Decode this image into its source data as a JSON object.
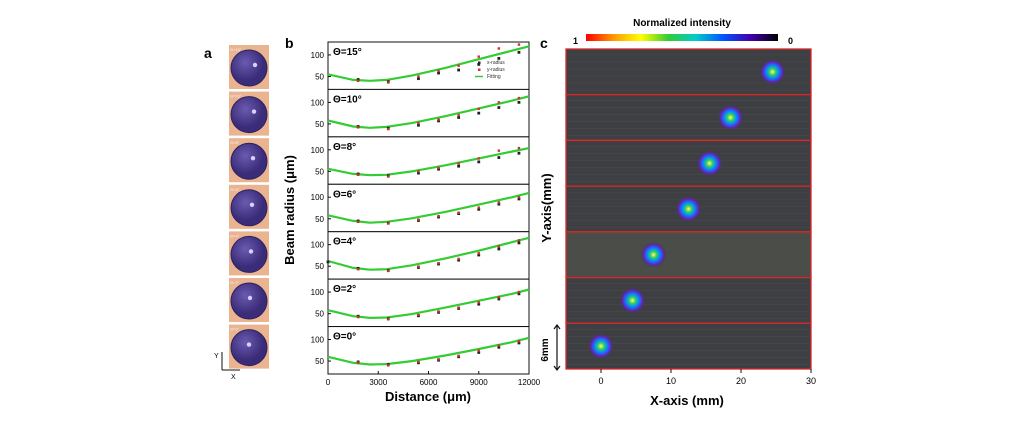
{
  "panel_labels": {
    "a": "a",
    "b": "b",
    "c": "c"
  },
  "panel_a": {
    "thumbnails": [
      {
        "label": "Θ=15°"
      },
      {
        "label": "Θ=10°"
      },
      {
        "label": "Θ=8°"
      },
      {
        "label": "Θ=6°"
      },
      {
        "label": "Θ=4°"
      },
      {
        "label": "Θ=2°"
      },
      {
        "label": "Θ=0°"
      }
    ],
    "axis_x": "X",
    "axis_y": "Y",
    "colors": {
      "tile_bg": "#e9b48f",
      "disk": "#4d3c8c",
      "disk_edge": "#2e2060"
    }
  },
  "chart_data": [
    {
      "type": "scatter",
      "panel": "b",
      "xlabel": "Distance (μm)",
      "ylabel": "Beam radius (μm)",
      "xlim": [
        0,
        12000
      ],
      "ylim": [
        20,
        130
      ],
      "xticks": [
        0,
        3000,
        6000,
        9000,
        12000
      ],
      "yticks": [
        50,
        100
      ],
      "legend": [
        "x-radius",
        "y-radius",
        "Fitting"
      ],
      "legend_position": "top-right of first subplot",
      "series_colors": {
        "x-radius": "#222222",
        "y-radius": "#d03030",
        "Fitting": "#33cc33"
      },
      "subplots": [
        {
          "label": "Θ=15°",
          "x_radius": [
            [
              1800,
              43
            ],
            [
              3600,
              38
            ],
            [
              5400,
              45
            ],
            [
              6600,
              58
            ],
            [
              7800,
              65
            ],
            [
              9000,
              78
            ],
            [
              10200,
              92
            ],
            [
              11400,
              106
            ]
          ],
          "y_radius": [
            [
              1800,
              40
            ],
            [
              3600,
              36
            ],
            [
              5400,
              50
            ],
            [
              6600,
              63
            ],
            [
              7800,
              75
            ],
            [
              9000,
              96
            ],
            [
              10200,
              115
            ],
            [
              11400,
              124
            ]
          ],
          "fit": [
            [
              0,
              55
            ],
            [
              1500,
              42
            ],
            [
              2500,
              40
            ],
            [
              3500,
              42
            ],
            [
              5000,
              52
            ],
            [
              7000,
              70
            ],
            [
              9000,
              90
            ],
            [
              11000,
              110
            ],
            [
              12000,
              120
            ]
          ]
        },
        {
          "label": "Θ=10°",
          "x_radius": [
            [
              1800,
              44
            ],
            [
              3600,
              40
            ],
            [
              5400,
              47
            ],
            [
              6600,
              57
            ],
            [
              7800,
              65
            ],
            [
              9000,
              75
            ],
            [
              10200,
              88
            ],
            [
              11400,
              100
            ]
          ],
          "y_radius": [
            [
              1800,
              42
            ],
            [
              3600,
              38
            ],
            [
              5400,
              52
            ],
            [
              6600,
              60
            ],
            [
              7800,
              70
            ],
            [
              9000,
              85
            ],
            [
              10200,
              100
            ],
            [
              11400,
              110
            ]
          ],
          "fit": [
            [
              0,
              58
            ],
            [
              1500,
              44
            ],
            [
              2500,
              41
            ],
            [
              3500,
              43
            ],
            [
              5000,
              52
            ],
            [
              7000,
              68
            ],
            [
              9000,
              86
            ],
            [
              11000,
              104
            ],
            [
              12000,
              114
            ]
          ]
        },
        {
          "label": "Θ=8°",
          "x_radius": [
            [
              1800,
              44
            ],
            [
              3600,
              40
            ],
            [
              5400,
              46
            ],
            [
              6600,
              55
            ],
            [
              7800,
              62
            ],
            [
              9000,
              72
            ],
            [
              10200,
              82
            ],
            [
              11400,
              92
            ]
          ],
          "y_radius": [
            [
              1800,
              42
            ],
            [
              3600,
              38
            ],
            [
              5400,
              50
            ],
            [
              6600,
              58
            ],
            [
              7800,
              68
            ],
            [
              9000,
              80
            ],
            [
              10200,
              98
            ],
            [
              11400,
              104
            ]
          ],
          "fit": [
            [
              0,
              56
            ],
            [
              1500,
              44
            ],
            [
              2500,
              41
            ],
            [
              3500,
              42
            ],
            [
              5000,
              50
            ],
            [
              7000,
              64
            ],
            [
              9000,
              80
            ],
            [
              11000,
              96
            ],
            [
              12000,
              104
            ]
          ]
        },
        {
          "label": "Θ=6°",
          "x_radius": [
            [
              1800,
              45
            ],
            [
              3600,
              40
            ],
            [
              5400,
              46
            ],
            [
              6600,
              54
            ],
            [
              7800,
              62
            ],
            [
              9000,
              72
            ],
            [
              10200,
              84
            ],
            [
              11400,
              96
            ]
          ],
          "y_radius": [
            [
              1800,
              43
            ],
            [
              3600,
              39
            ],
            [
              5400,
              48
            ],
            [
              6600,
              56
            ],
            [
              7800,
              64
            ],
            [
              9000,
              76
            ],
            [
              10200,
              88
            ],
            [
              11400,
              100
            ]
          ],
          "fit": [
            [
              0,
              58
            ],
            [
              1500,
              45
            ],
            [
              2500,
              41
            ],
            [
              3500,
              43
            ],
            [
              5000,
              51
            ],
            [
              7000,
              66
            ],
            [
              9000,
              83
            ],
            [
              11000,
              100
            ],
            [
              12000,
              110
            ]
          ]
        },
        {
          "label": "Θ=4°",
          "x_radius": [
            [
              0,
              60
            ],
            [
              1800,
              45
            ],
            [
              3600,
              40
            ],
            [
              5400,
              47
            ],
            [
              6600,
              55
            ],
            [
              7800,
              64
            ],
            [
              9000,
              76
            ],
            [
              10200,
              90
            ],
            [
              11400,
              104
            ]
          ],
          "y_radius": [
            [
              1800,
              43
            ],
            [
              3600,
              39
            ],
            [
              5400,
              49
            ],
            [
              6600,
              57
            ],
            [
              7800,
              67
            ],
            [
              9000,
              80
            ],
            [
              10200,
              96
            ],
            [
              11400,
              110
            ]
          ],
          "fit": [
            [
              0,
              62
            ],
            [
              1500,
              46
            ],
            [
              2500,
              42
            ],
            [
              3500,
              43
            ],
            [
              5000,
              52
            ],
            [
              7000,
              68
            ],
            [
              9000,
              86
            ],
            [
              11000,
              106
            ],
            [
              12000,
              116
            ]
          ]
        },
        {
          "label": "Θ=2°",
          "x_radius": [
            [
              1800,
              44
            ],
            [
              3600,
              38
            ],
            [
              5400,
              45
            ],
            [
              6600,
              53
            ],
            [
              7800,
              62
            ],
            [
              9000,
              72
            ],
            [
              10200,
              84
            ],
            [
              11400,
              96
            ]
          ],
          "y_radius": [
            [
              1800,
              42
            ],
            [
              3600,
              37
            ],
            [
              5400,
              47
            ],
            [
              6600,
              55
            ],
            [
              7800,
              64
            ],
            [
              9000,
              76
            ],
            [
              10200,
              88
            ],
            [
              11400,
              100
            ]
          ],
          "fit": [
            [
              0,
              58
            ],
            [
              1500,
              44
            ],
            [
              2500,
              40
            ],
            [
              3500,
              41
            ],
            [
              5000,
              49
            ],
            [
              7000,
              64
            ],
            [
              9000,
              80
            ],
            [
              11000,
              96
            ],
            [
              12000,
              106
            ]
          ]
        },
        {
          "label": "Θ=0°",
          "x_radius": [
            [
              1800,
              48
            ],
            [
              3600,
              42
            ],
            [
              5400,
              46
            ],
            [
              6600,
              52
            ],
            [
              7800,
              60
            ],
            [
              9000,
              70
            ],
            [
              10200,
              82
            ],
            [
              11400,
              92
            ]
          ],
          "y_radius": [
            [
              1800,
              46
            ],
            [
              3600,
              40
            ],
            [
              5400,
              48
            ],
            [
              6600,
              54
            ],
            [
              7800,
              62
            ],
            [
              9000,
              74
            ],
            [
              10200,
              86
            ],
            [
              11400,
              96
            ]
          ],
          "fit": [
            [
              0,
              60
            ],
            [
              1500,
              46
            ],
            [
              2500,
              42
            ],
            [
              3500,
              43
            ],
            [
              5000,
              50
            ],
            [
              7000,
              63
            ],
            [
              9000,
              78
            ],
            [
              11000,
              94
            ],
            [
              12000,
              104
            ]
          ]
        }
      ]
    },
    {
      "type": "heatmap",
      "panel": "c",
      "title": "Normalized intensity",
      "colorbar_min_label": "1",
      "colorbar_max_label": "0",
      "colorbar_stops": [
        "#ff0000",
        "#ff9900",
        "#ffff00",
        "#33cc33",
        "#00cccc",
        "#0055ff",
        "#4400aa",
        "#000000"
      ],
      "xlabel": "X-axis (mm)",
      "ylabel": "Y-axis(mm)",
      "xlim": [
        -5,
        30
      ],
      "xticks": [
        0,
        10,
        20,
        30
      ],
      "scale_bar_label": "6mm",
      "strip_count": 7,
      "spots_x_mm": [
        24.5,
        18.5,
        15.5,
        12.5,
        7.5,
        4.5,
        0
      ]
    }
  ]
}
